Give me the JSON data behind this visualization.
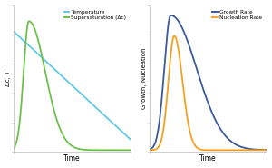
{
  "left": {
    "ylabel": "Δc, T",
    "xlabel": "Time",
    "temp_color": "#62C8E8",
    "super_color": "#6DC04E",
    "legend_labels": [
      "Temperature",
      "Supersaturation (Δc)"
    ]
  },
  "right": {
    "ylabel": "Growth, Nucleation",
    "xlabel": "Time",
    "growth_color": "#3A5A9B",
    "nucleation_color": "#F5A020",
    "legend_labels": [
      "Growth Rate",
      "Nucleation Rate"
    ]
  },
  "bg_color": "#ffffff",
  "linewidth": 1.3,
  "legend_fontsize": 4.2,
  "axis_fontsize": 5.0,
  "xlabel_fontsize": 5.5
}
